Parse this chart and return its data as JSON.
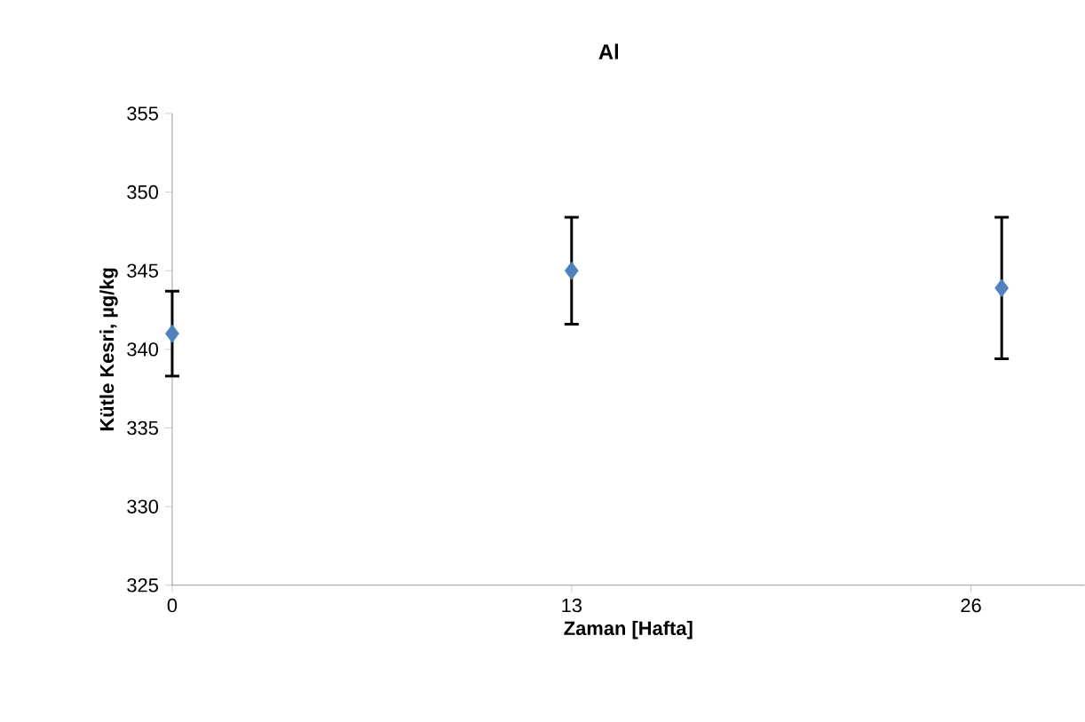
{
  "chart_data": {
    "type": "scatter",
    "title": "Al",
    "xlabel": "Zaman [Hafta]",
    "ylabel": "Kütle Kesri, µg/kg",
    "x": [
      0,
      13,
      27
    ],
    "series": [
      {
        "color": "#4f81bd",
        "values": [
          341,
          345,
          343.9
        ],
        "errors": [
          2.7,
          3.4,
          4.5
        ]
      }
    ],
    "xlim": [
      0,
      29.7
    ],
    "xticks": [
      0,
      13,
      26
    ],
    "ylim": [
      325,
      355
    ],
    "yticks": [
      325,
      330,
      335,
      340,
      345,
      350,
      355
    ],
    "marker": "diamond"
  }
}
